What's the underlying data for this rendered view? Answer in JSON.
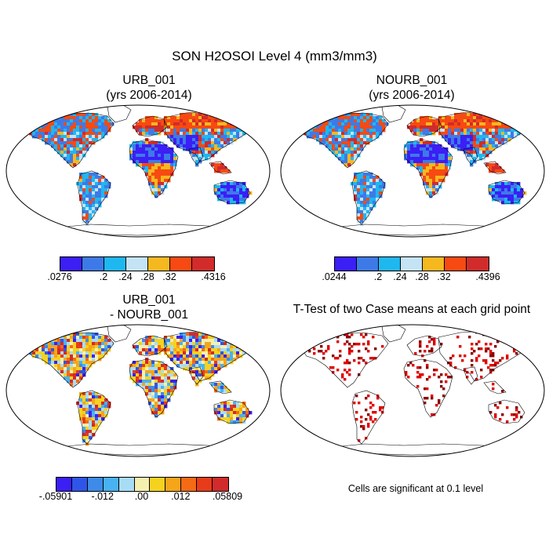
{
  "chart_data": {
    "type": "heatmap",
    "title": "SON H2OSOI Level 4 (mm3/mm3)",
    "panels": [
      {
        "name": "urb",
        "title_line1": "URB_001",
        "title_line2": "(yrs 2006-2014)",
        "colorbar": {
          "colors": [
            "#3b1ff5",
            "#3d7ae8",
            "#1fb7f0",
            "#c4e3f4",
            "#f5b81f",
            "#f74a12",
            "#d12b2b"
          ],
          "tick_labels": [
            ".0276",
            ".2",
            ".24",
            ".28",
            ".32",
            ".4316"
          ],
          "min": 0.0276,
          "max": 0.4316,
          "levels": [
            0.2,
            0.24,
            0.28,
            0.32
          ]
        }
      },
      {
        "name": "nourb",
        "title_line1": "NOURB_001",
        "title_line2": "(yrs 2006-2014)",
        "colorbar": {
          "colors": [
            "#3b1ff5",
            "#3d7ae8",
            "#1fb7f0",
            "#c4e3f4",
            "#f5b81f",
            "#f74a12",
            "#d12b2b"
          ],
          "tick_labels": [
            ".0244",
            ".2",
            ".24",
            ".28",
            ".32",
            ".4396"
          ],
          "min": 0.0244,
          "max": 0.4396,
          "levels": [
            0.2,
            0.24,
            0.28,
            0.32
          ]
        }
      },
      {
        "name": "diff",
        "title_line1": "URB_001",
        "title_line2": "- NOURB_001",
        "colorbar": {
          "colors": [
            "#3b1ff5",
            "#2f55e8",
            "#3d8ae8",
            "#49b2f2",
            "#a8dcf5",
            "#f5f0b0",
            "#f5d21f",
            "#f5a51a",
            "#f56a14",
            "#e83b1a",
            "#d12b2b"
          ],
          "tick_labels": [
            "-.05901",
            "-.012",
            ".00",
            ".012",
            ".05809"
          ],
          "min": -0.05901,
          "max": 0.05809
        }
      },
      {
        "name": "ttest",
        "title_line1": "T-Test of two Case means at each grid point",
        "title_line2": "",
        "note": "Cells are significant at 0.1 level"
      }
    ]
  }
}
